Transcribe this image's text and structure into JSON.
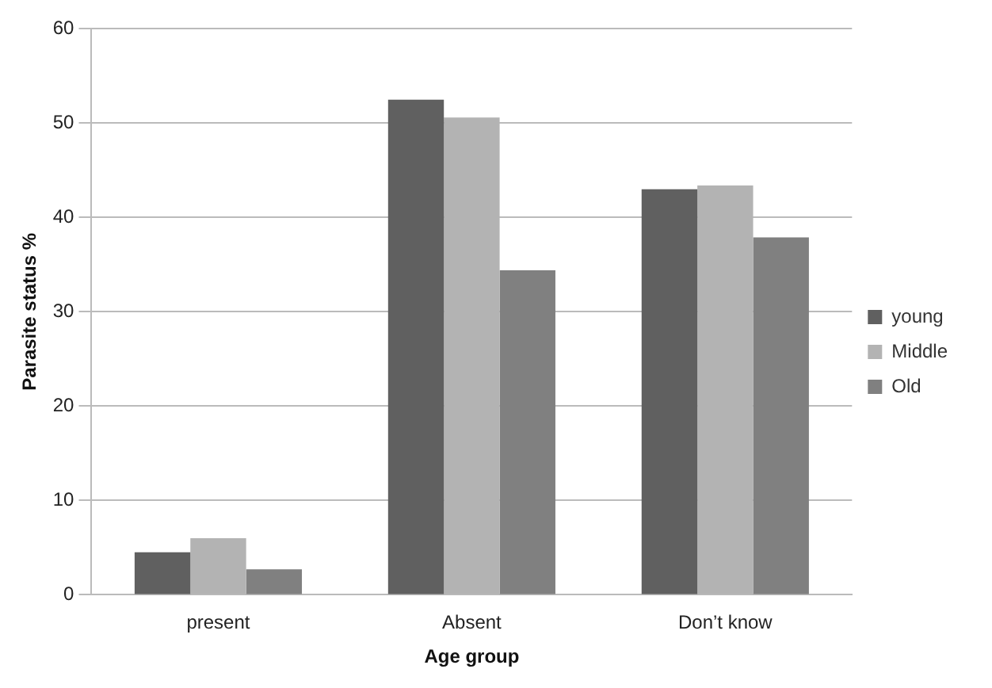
{
  "chart_data": {
    "type": "bar",
    "xlabel": "Age group",
    "ylabel": "Parasite status %",
    "categories": [
      "present",
      "Absent",
      "Don’t know"
    ],
    "series": [
      {
        "name": "young",
        "color": "#606060",
        "values": [
          4.5,
          52.5,
          43.0
        ]
      },
      {
        "name": "Middle",
        "color": "#b3b3b3",
        "values": [
          6.0,
          50.6,
          43.4
        ]
      },
      {
        "name": "Old",
        "color": "#808080",
        "values": [
          2.7,
          34.4,
          37.9
        ]
      }
    ],
    "ylim": [
      0,
      60
    ],
    "yticks": [
      0,
      10,
      20,
      30,
      40,
      50,
      60
    ],
    "grid": "y",
    "legend": "right"
  }
}
